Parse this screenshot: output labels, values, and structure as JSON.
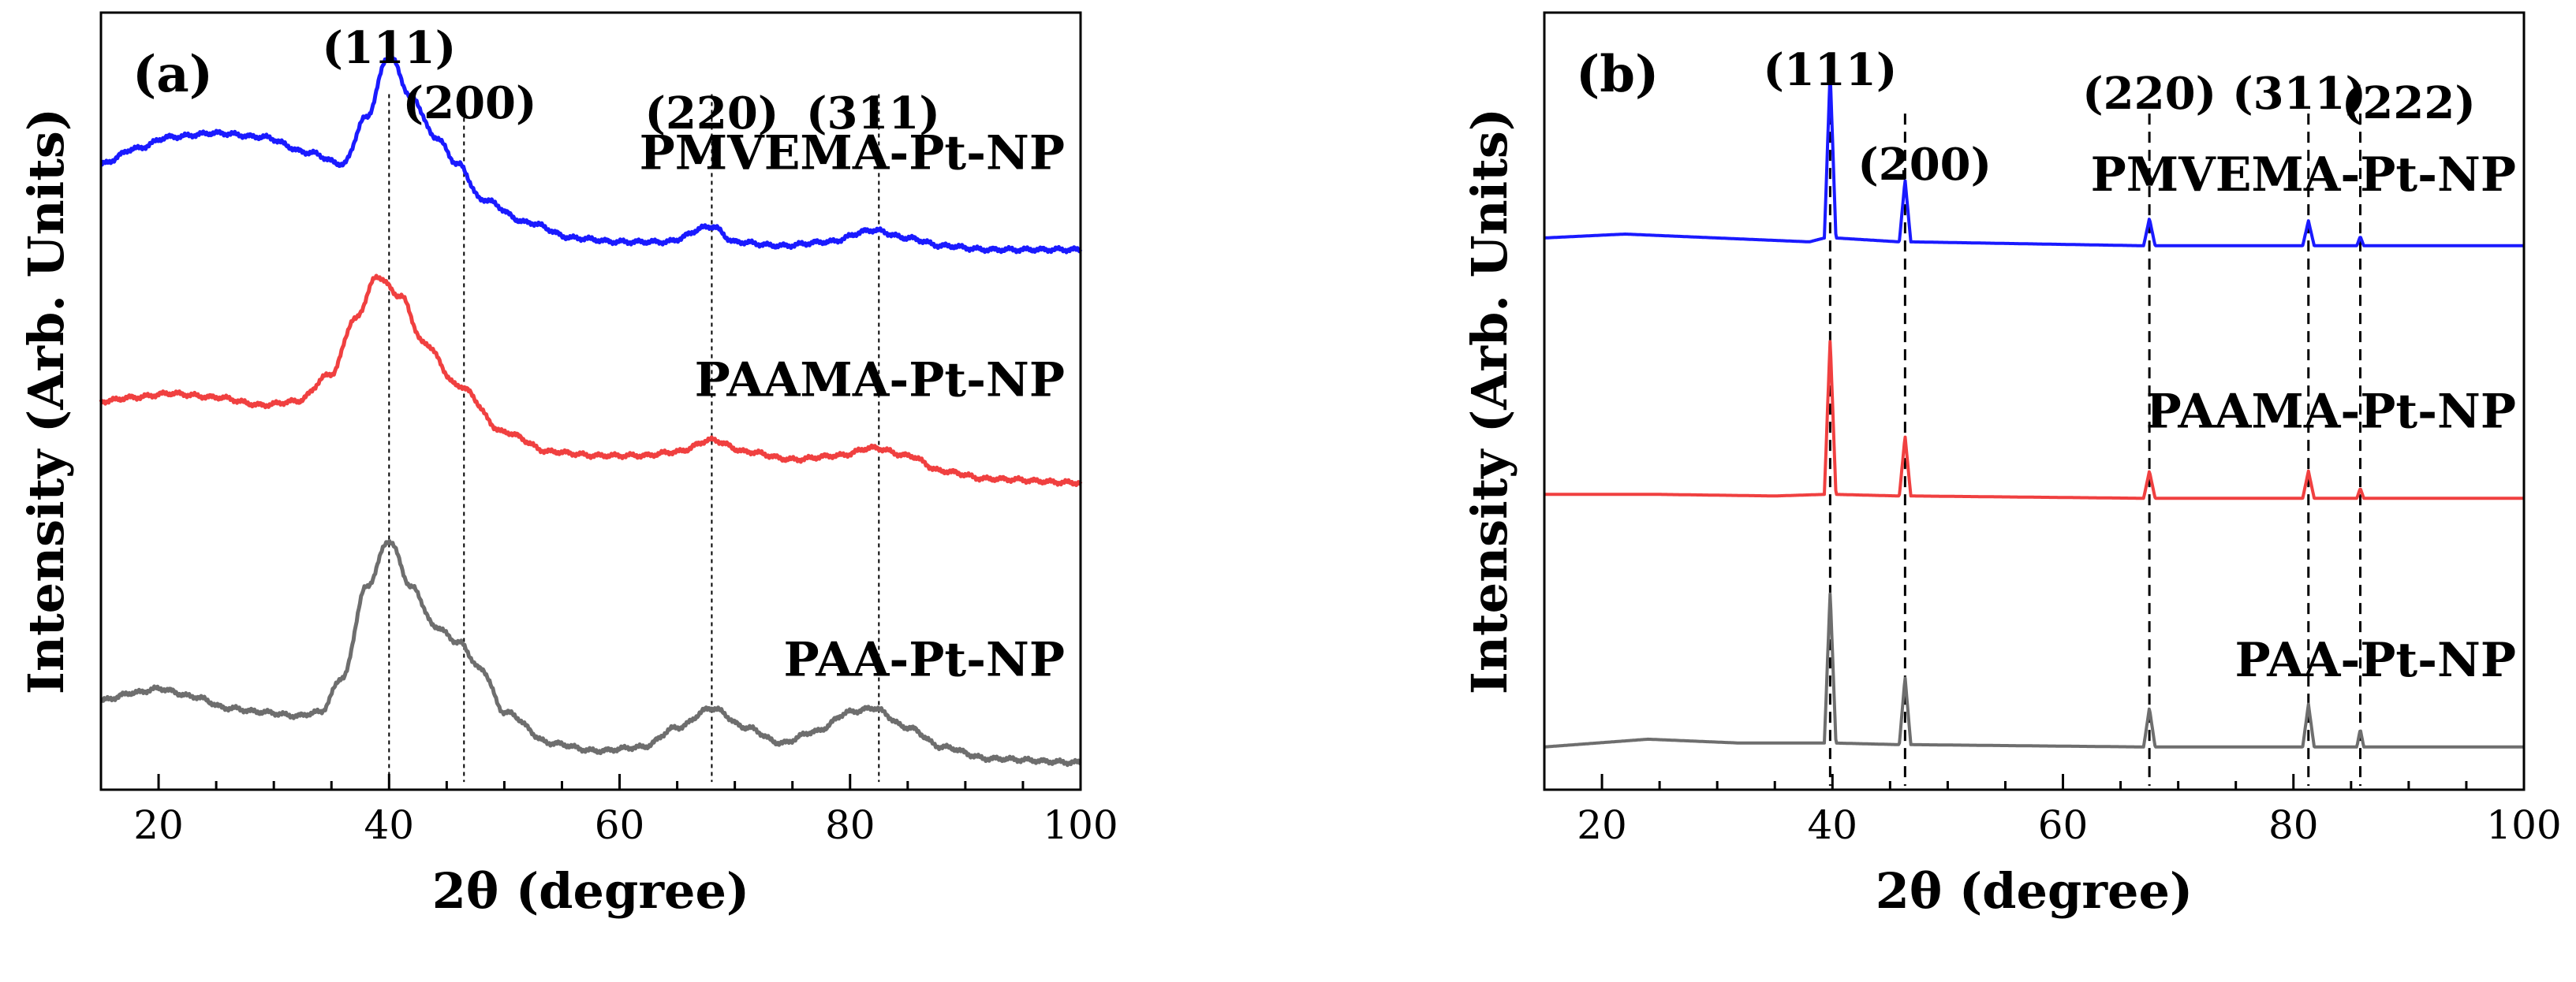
{
  "chart_data": [
    {
      "id": "a",
      "type": "line",
      "title": "(a)",
      "xlabel": "2θ (degree)",
      "ylabel": "Intensity (Arb. Units)",
      "xlim": [
        15,
        100
      ],
      "xticks": [
        20,
        40,
        60,
        80,
        100
      ],
      "ylim": [
        0,
        10
      ],
      "reference_lines": [
        40,
        46.5,
        68,
        82.5
      ],
      "peak_labels": [
        {
          "text": "(111)",
          "x": 40
        },
        {
          "text": "(200)",
          "x": 47
        },
        {
          "text": "(220)",
          "x": 68
        },
        {
          "text": "(311)",
          "x": 82
        }
      ],
      "series": [
        {
          "name": "PMVEMA-Pt-NP",
          "color": "#1a1aff",
          "baseline": 6.95,
          "points": [
            [
              15,
              8.05
            ],
            [
              18,
              8.25
            ],
            [
              21,
              8.4
            ],
            [
              25,
              8.45
            ],
            [
              29,
              8.4
            ],
            [
              33,
              8.2
            ],
            [
              36,
              8.05
            ],
            [
              38,
              8.65
            ],
            [
              40,
              9.45
            ],
            [
              42,
              8.9
            ],
            [
              44,
              8.4
            ],
            [
              46,
              8.05
            ],
            [
              48,
              7.6
            ],
            [
              52,
              7.3
            ],
            [
              56,
              7.1
            ],
            [
              60,
              7.05
            ],
            [
              64,
              7.05
            ],
            [
              68,
              7.25
            ],
            [
              70,
              7.05
            ],
            [
              74,
              7.0
            ],
            [
              78,
              7.05
            ],
            [
              82,
              7.2
            ],
            [
              85,
              7.1
            ],
            [
              88,
              7.0
            ],
            [
              92,
              6.95
            ],
            [
              100,
              6.95
            ]
          ]
        },
        {
          "name": "PAAMA-Pt-NP",
          "color": "#f04040",
          "baseline": 3.95,
          "points": [
            [
              15,
              5.0
            ],
            [
              18,
              5.05
            ],
            [
              21,
              5.1
            ],
            [
              25,
              5.05
            ],
            [
              29,
              4.95
            ],
            [
              32,
              5.0
            ],
            [
              35,
              5.35
            ],
            [
              37,
              6.05
            ],
            [
              39,
              6.6
            ],
            [
              41,
              6.35
            ],
            [
              43,
              5.75
            ],
            [
              46,
              5.2
            ],
            [
              50,
              4.6
            ],
            [
              54,
              4.35
            ],
            [
              58,
              4.3
            ],
            [
              62,
              4.3
            ],
            [
              65,
              4.35
            ],
            [
              68,
              4.5
            ],
            [
              71,
              4.35
            ],
            [
              75,
              4.25
            ],
            [
              79,
              4.3
            ],
            [
              82,
              4.4
            ],
            [
              85,
              4.3
            ],
            [
              88,
              4.1
            ],
            [
              92,
              4.0
            ],
            [
              100,
              3.95
            ]
          ]
        },
        {
          "name": "PAA-Pt-NP",
          "color": "#6e6e6e",
          "baseline": 0.35,
          "points": [
            [
              15,
              1.15
            ],
            [
              18,
              1.25
            ],
            [
              20,
              1.3
            ],
            [
              23,
              1.2
            ],
            [
              26,
              1.05
            ],
            [
              29,
              1.0
            ],
            [
              32,
              0.95
            ],
            [
              34,
              1.0
            ],
            [
              36,
              1.45
            ],
            [
              38,
              2.6
            ],
            [
              40,
              3.2
            ],
            [
              42,
              2.6
            ],
            [
              44,
              2.1
            ],
            [
              46,
              1.9
            ],
            [
              48,
              1.55
            ],
            [
              50,
              1.0
            ],
            [
              54,
              0.6
            ],
            [
              58,
              0.5
            ],
            [
              62,
              0.55
            ],
            [
              65,
              0.8
            ],
            [
              68,
              1.05
            ],
            [
              71,
              0.8
            ],
            [
              74,
              0.6
            ],
            [
              77,
              0.75
            ],
            [
              80,
              1.0
            ],
            [
              82,
              1.05
            ],
            [
              85,
              0.8
            ],
            [
              88,
              0.55
            ],
            [
              92,
              0.4
            ],
            [
              100,
              0.35
            ]
          ]
        }
      ]
    },
    {
      "id": "b",
      "type": "line",
      "title": "(b)",
      "xlabel": "2θ (degree)",
      "ylabel": "Intensity (Arb. Units)",
      "xlim": [
        15,
        100
      ],
      "xticks": [
        20,
        40,
        60,
        80,
        100
      ],
      "ylim": [
        0,
        10
      ],
      "reference_lines": [
        39.8,
        46.3,
        67.5,
        81.3,
        85.8
      ],
      "peak_labels": [
        {
          "text": "(111)",
          "x": 39.8
        },
        {
          "text": "(200)",
          "x": 48
        },
        {
          "text": "(220)",
          "x": 67.5
        },
        {
          "text": "(311)",
          "x": 80.5
        },
        {
          "text": "(222)",
          "x": 90
        }
      ],
      "series": [
        {
          "name": "PMVEMA-Pt-NP",
          "color": "#1a1aff",
          "baseline": 7.0,
          "points": [
            [
              15,
              7.1
            ],
            [
              22,
              7.15
            ],
            [
              30,
              7.1
            ],
            [
              38,
              7.05
            ],
            [
              39.3,
              7.1
            ],
            [
              39.8,
              9.25
            ],
            [
              40.3,
              7.1
            ],
            [
              45.8,
              7.05
            ],
            [
              46.3,
              7.85
            ],
            [
              46.8,
              7.05
            ],
            [
              67.0,
              7.0
            ],
            [
              67.5,
              7.35
            ],
            [
              68.0,
              7.0
            ],
            [
              80.8,
              7.0
            ],
            [
              81.3,
              7.32
            ],
            [
              81.8,
              7.0
            ],
            [
              85.5,
              7.0
            ],
            [
              85.8,
              7.12
            ],
            [
              86.1,
              7.0
            ],
            [
              100,
              7.0
            ]
          ]
        },
        {
          "name": "PAAMA-Pt-NP",
          "color": "#f04040",
          "baseline": 3.75,
          "points": [
            [
              15,
              3.8
            ],
            [
              25,
              3.8
            ],
            [
              35,
              3.78
            ],
            [
              39.3,
              3.8
            ],
            [
              39.8,
              5.8
            ],
            [
              40.3,
              3.8
            ],
            [
              45.8,
              3.78
            ],
            [
              46.3,
              4.55
            ],
            [
              46.8,
              3.78
            ],
            [
              67.0,
              3.75
            ],
            [
              67.5,
              4.1
            ],
            [
              68.0,
              3.75
            ],
            [
              80.8,
              3.75
            ],
            [
              81.3,
              4.1
            ],
            [
              81.8,
              3.75
            ],
            [
              85.5,
              3.75
            ],
            [
              85.8,
              3.88
            ],
            [
              86.1,
              3.75
            ],
            [
              100,
              3.75
            ]
          ]
        },
        {
          "name": "PAA-Pt-NP",
          "color": "#6e6e6e",
          "baseline": 0.55,
          "points": [
            [
              15,
              0.55
            ],
            [
              24,
              0.65
            ],
            [
              32,
              0.6
            ],
            [
              39.3,
              0.6
            ],
            [
              39.8,
              2.55
            ],
            [
              40.3,
              0.6
            ],
            [
              45.8,
              0.58
            ],
            [
              46.3,
              1.45
            ],
            [
              46.8,
              0.58
            ],
            [
              67.0,
              0.55
            ],
            [
              67.5,
              1.05
            ],
            [
              68.0,
              0.55
            ],
            [
              80.8,
              0.55
            ],
            [
              81.3,
              1.1
            ],
            [
              81.8,
              0.55
            ],
            [
              85.5,
              0.55
            ],
            [
              85.8,
              0.78
            ],
            [
              86.1,
              0.55
            ],
            [
              100,
              0.55
            ]
          ]
        }
      ]
    }
  ]
}
